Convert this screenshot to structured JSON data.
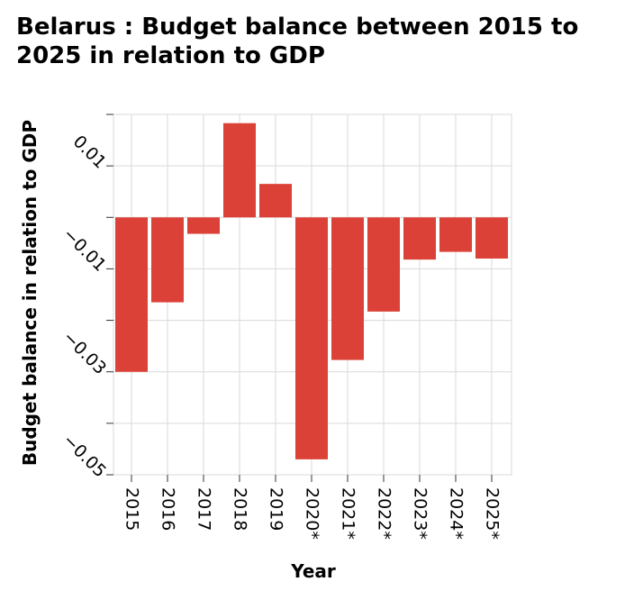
{
  "chart_data": {
    "type": "bar",
    "title": "Belarus : Budget balance between 2015 to 2025 in relation to GDP",
    "xlabel": "Year",
    "ylabel": "Budget balance in relation to GDP",
    "categories": [
      "2015",
      "2016",
      "2017",
      "2018",
      "2019",
      "2020*",
      "2021*",
      "2022*",
      "2023*",
      "2024*",
      "2025*"
    ],
    "values": [
      -0.03,
      -0.0165,
      -0.0032,
      0.0183,
      0.0065,
      -0.047,
      -0.0277,
      -0.0183,
      -0.0082,
      -0.0067,
      -0.008
    ],
    "ylim": [
      -0.05,
      0.02
    ],
    "yticks": [
      -0.05,
      -0.04,
      -0.03,
      -0.02,
      -0.01,
      0,
      0.01,
      0.02
    ],
    "ytick_labels": [
      "-0.05",
      "-0.03",
      "-0.01",
      "0.01"
    ],
    "ytick_label_values": [
      -0.05,
      -0.03,
      -0.01,
      0.01
    ],
    "grid": true,
    "bar_color": "#dc4137",
    "grid_color": "#d9d9d9"
  }
}
